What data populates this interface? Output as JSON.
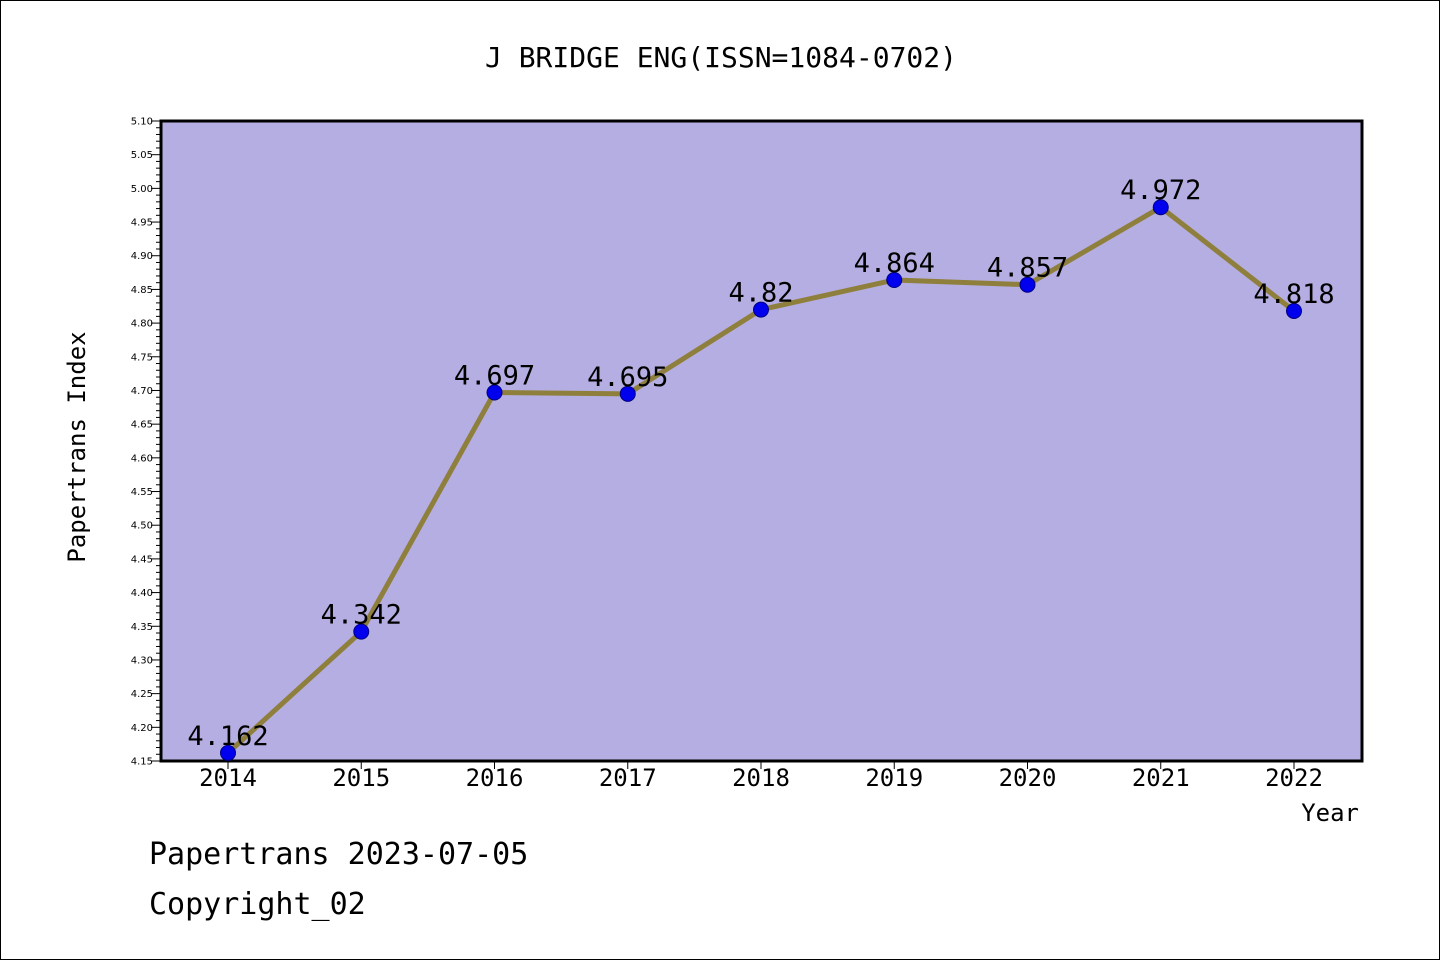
{
  "footer": {
    "line1": "Papertrans 2023-07-05",
    "line2": "Copyright_02"
  },
  "chart_data": {
    "type": "line",
    "title": "J BRIDGE ENG(ISSN=1084-0702)",
    "xlabel": "Year",
    "ylabel": "Papertrans Index",
    "ylim": [
      4.15,
      5.1
    ],
    "yticks": [
      4.15,
      4.2,
      4.25,
      4.3,
      4.35,
      4.4,
      4.45,
      4.5,
      4.55,
      4.6,
      4.65,
      4.7,
      4.75,
      4.8,
      4.85,
      4.9,
      4.95,
      5.0,
      5.05,
      5.1
    ],
    "ytick_labels": [
      "4.15",
      "4.20",
      "4.25",
      "4.30",
      "4.35",
      "4.40",
      "4.45",
      "4.50",
      "4.55",
      "4.60",
      "4.65",
      "4.70",
      "4.75",
      "4.80",
      "4.85",
      "4.90",
      "4.95",
      "5.00",
      "5.05",
      "5.10"
    ],
    "categories": [
      "2014",
      "2015",
      "2016",
      "2017",
      "2018",
      "2019",
      "2020",
      "2021",
      "2022"
    ],
    "series": [
      {
        "values": [
          4.162,
          4.342,
          4.697,
          4.695,
          4.82,
          4.864,
          4.857,
          4.972,
          4.818
        ],
        "data_labels": [
          "4.162",
          "4.342",
          "4.697",
          "4.695",
          "4.82",
          "4.864",
          "4.857",
          "4.972",
          "4.818"
        ]
      }
    ],
    "grid": false,
    "colors": {
      "plot_background": "#b5aee2",
      "line": "#8f7f3c",
      "marker": "#0000ee",
      "marker_edge": "#000080",
      "axis": "#000000"
    }
  }
}
